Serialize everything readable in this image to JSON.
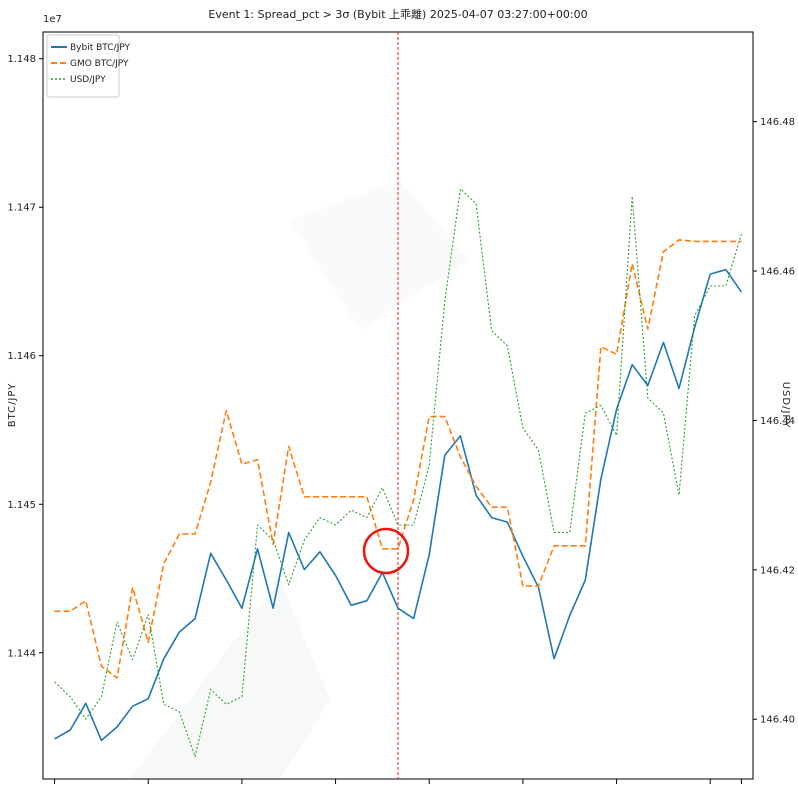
{
  "chart_data": {
    "type": "line",
    "title": "Event 1: Spread_pct > 3σ (Bybit 上乖離)  2025-04-07 03:27:00+00:00",
    "ylabel_left": "BTC/JPY",
    "ylabel_right": "USD/JPY",
    "left_offset_label": "1e7",
    "left_ticks": [
      "1.144",
      "1.145",
      "1.146",
      "1.147",
      "1.148"
    ],
    "left_tick_values": [
      11440000,
      11450000,
      11460000,
      11470000,
      11480000
    ],
    "right_ticks": [
      "146.40",
      "146.42",
      "146.44",
      "146.46",
      "146.48"
    ],
    "right_tick_values": [
      146.4,
      146.42,
      146.44,
      146.46,
      146.48
    ],
    "ylim_left": [
      11431500,
      11481800
    ],
    "ylim_right": [
      146.392,
      146.492
    ],
    "xlim": [
      -0.74,
      44.74
    ],
    "event_index": 22,
    "grid": false,
    "legend_position": "top-left",
    "series": [
      {
        "name": "Bybit BTC/JPY",
        "axis": "left",
        "style": "solid",
        "color": "#1f77b4",
        "values": [
          11434200,
          11434800,
          11436600,
          11434100,
          11435000,
          11436400,
          11436900,
          11439600,
          11441400,
          11442300,
          11446700,
          11444900,
          11443000,
          11447000,
          11443000,
          11448100,
          11445600,
          11446800,
          11445200,
          11443200,
          11443500,
          11445400,
          11443000,
          11442300,
          11446600,
          11453300,
          11454600,
          11450600,
          11449100,
          11448800,
          11446500,
          11444400,
          11439600,
          11442500,
          11444900,
          11451700,
          11456400,
          11459400,
          11458000,
          11460900,
          11457800,
          11461900,
          11465500,
          11465800,
          11464300
        ]
      },
      {
        "name": "GMO BTC/JPY",
        "axis": "left",
        "style": "dashed",
        "color": "#ff7f0e",
        "values": [
          11442800,
          11442800,
          11443500,
          11439100,
          11438300,
          11444400,
          11440700,
          11446000,
          11448000,
          11448000,
          11451500,
          11456300,
          11452700,
          11453000,
          11447300,
          11453900,
          11450500,
          11450500,
          11450500,
          11450500,
          11450500,
          11447000,
          11447000,
          11450300,
          11455900,
          11455900,
          11453200,
          11451200,
          11449800,
          11449800,
          11444500,
          11444500,
          11447200,
          11447200,
          11447200,
          11460600,
          11460100,
          11466200,
          11461800,
          11467000,
          11467800,
          11467700,
          11467700,
          11467700,
          11467700
        ]
      },
      {
        "name": "USD/JPY",
        "axis": "right",
        "style": "dotted",
        "color": "#2ca02c",
        "values": [
          146.405,
          146.403,
          146.4,
          146.403,
          146.413,
          146.408,
          146.414,
          146.402,
          146.401,
          146.395,
          146.404,
          146.402,
          146.403,
          146.426,
          146.424,
          146.418,
          146.424,
          146.427,
          146.426,
          146.428,
          146.427,
          146.431,
          146.426,
          146.426,
          146.434,
          146.456,
          146.471,
          146.469,
          146.452,
          146.45,
          146.439,
          146.436,
          146.425,
          146.425,
          146.441,
          146.442,
          146.438,
          146.47,
          146.443,
          146.441,
          146.43,
          146.454,
          146.458,
          146.458,
          146.465
        ]
      }
    ]
  }
}
